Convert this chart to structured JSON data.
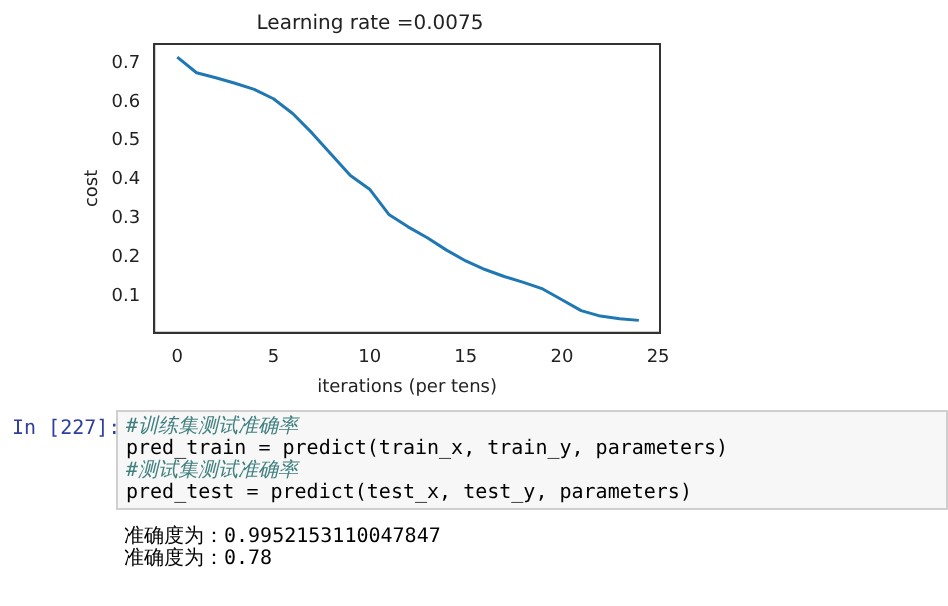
{
  "chart_data": {
    "type": "line",
    "title": "Learning rate =0.0075",
    "xlabel": "iterations (per tens)",
    "ylabel": "cost",
    "x": [
      0,
      1,
      2,
      3,
      4,
      5,
      6,
      7,
      8,
      9,
      10,
      11,
      12,
      13,
      14,
      15,
      16,
      17,
      18,
      19,
      20,
      21,
      22,
      23,
      24
    ],
    "series": [
      {
        "color": "#1f77b4",
        "values": [
          0.715,
          0.675,
          0.662,
          0.648,
          0.632,
          0.608,
          0.57,
          0.52,
          0.465,
          0.41,
          0.375,
          0.31,
          0.278,
          0.25,
          0.218,
          0.19,
          0.168,
          0.15,
          0.135,
          0.118,
          0.09,
          0.062,
          0.048,
          0.041,
          0.037
        ]
      }
    ],
    "xlim": [
      -1.2,
      25.1
    ],
    "xticks": [
      0,
      5,
      10,
      15,
      20,
      25
    ],
    "ylim": [
      0.005,
      0.749
    ],
    "yticks": [
      0.1,
      0.2,
      0.3,
      0.4,
      0.5,
      0.6,
      0.7
    ],
    "grid": false,
    "legend": false,
    "marker": "none",
    "line_style": "solid",
    "annotations": [
      "In [227]:",
      "#训练集测试准确率",
      "pred_train = predict(train_x, train_y, parameters)",
      "#测试集测试准确率",
      "pred_test = predict(test_x, test_y, parameters)",
      "准确度为：0.9952153110047847",
      "准确度为：0.78"
    ]
  }
}
